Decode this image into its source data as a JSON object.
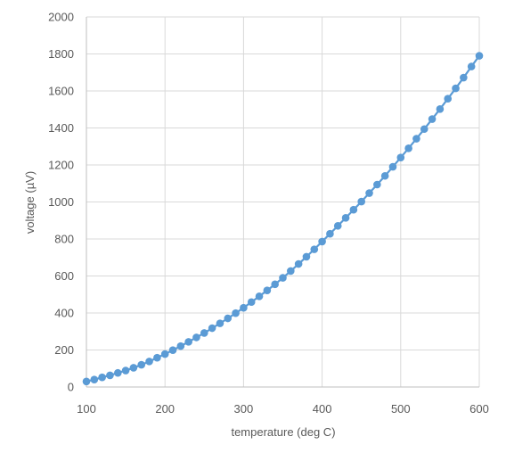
{
  "chart_data": {
    "type": "line",
    "xlabel": "temperature (deg C)",
    "ylabel": "voltage (µV)",
    "xlim": [
      100,
      600
    ],
    "ylim": [
      0,
      2000
    ],
    "x_ticks": [
      "100",
      "200",
      "300",
      "400",
      "500",
      "600"
    ],
    "y_ticks": [
      "0",
      "200",
      "400",
      "600",
      "800",
      "1000",
      "1200",
      "1400",
      "1600",
      "1800",
      "2000"
    ],
    "grid": true,
    "legend": "none",
    "series": [
      {
        "color": "#5b9bd5",
        "marker": "circle",
        "x": [
          100,
          110,
          120,
          130,
          140,
          150,
          160,
          170,
          180,
          190,
          200,
          210,
          220,
          230,
          240,
          250,
          260,
          270,
          280,
          290,
          300,
          310,
          320,
          330,
          340,
          350,
          360,
          370,
          380,
          390,
          400,
          410,
          420,
          430,
          440,
          450,
          460,
          470,
          480,
          490,
          500,
          510,
          520,
          530,
          540,
          550,
          560,
          570,
          580,
          590,
          600
        ],
        "y": [
          30,
          40,
          52,
          63,
          76,
          89,
          104,
          120,
          138,
          158,
          178,
          199,
          221,
          244,
          268,
          292,
          318,
          344,
          371,
          399,
          428,
          459,
          490,
          522,
          555,
          590,
          627,
          665,
          704,
          744,
          786,
          828,
          871,
          914,
          958,
          1002,
          1048,
          1094,
          1141,
          1190,
          1240,
          1290,
          1342,
          1394,
          1448,
          1502,
          1558,
          1614,
          1672,
          1732,
          1790
        ]
      }
    ]
  }
}
